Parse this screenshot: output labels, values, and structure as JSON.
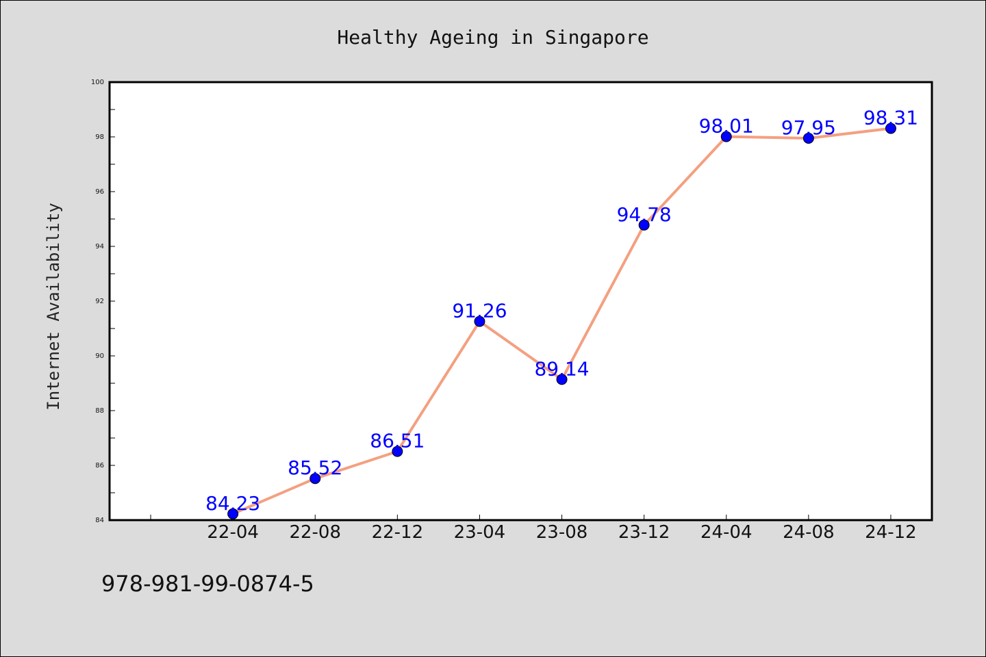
{
  "chart_data": {
    "type": "line",
    "title": "Healthy Ageing in Singapore",
    "xlabel": "",
    "ylabel": "Internet Availability",
    "categories": [
      "22-04",
      "22-08",
      "22-12",
      "23-04",
      "23-08",
      "23-12",
      "24-04",
      "24-08",
      "24-12"
    ],
    "series": [
      {
        "values": [
          84.23,
          85.52,
          86.51,
          91.26,
          89.14,
          94.78,
          98.01,
          97.95,
          98.31
        ]
      }
    ],
    "data_labels": [
      "84.23",
      "85.52",
      "86.51",
      "91.26",
      "89.14",
      "94.78",
      "98.01",
      "97.95",
      "98.31"
    ],
    "ylim": [
      84,
      100
    ],
    "yticks": [
      "84",
      "86",
      "88",
      "90",
      "92",
      "94",
      "96",
      "98",
      "100"
    ],
    "grid": false,
    "legend": "none",
    "line_color": "#f4a080",
    "marker_color": "#0000ff",
    "label_color": "#0000ff",
    "annotation": "978-981-99-0874-5"
  }
}
